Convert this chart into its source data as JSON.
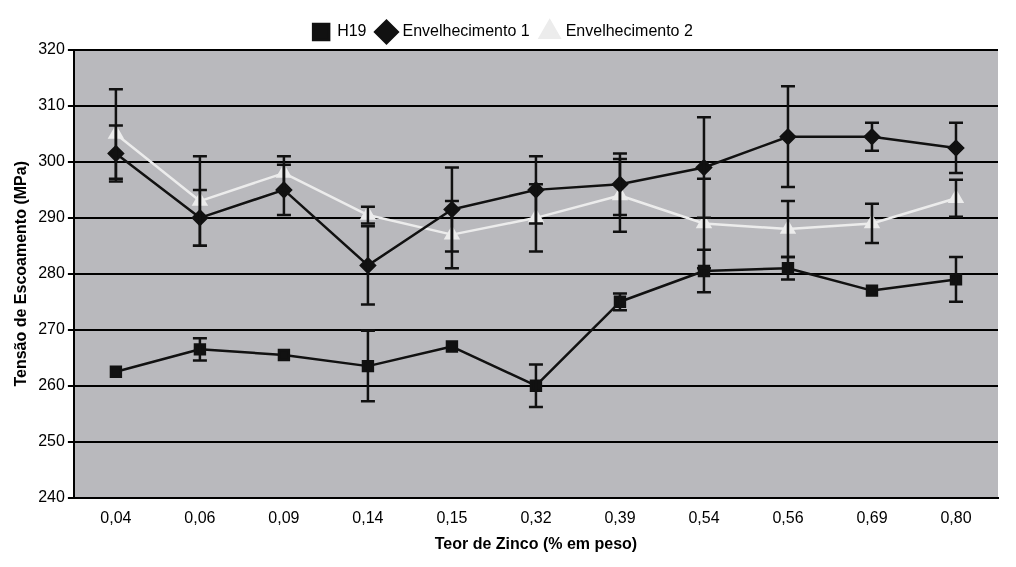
{
  "chart_data": {
    "type": "line",
    "xlabel": "Teor de Zinco (% em peso)",
    "ylabel": "Tensão de Escoamento (MPa)",
    "categories": [
      "0,04",
      "0,06",
      "0,09",
      "0,14",
      "0,15",
      "0,32",
      "0,39",
      "0,54",
      "0,56",
      "0,69",
      "0,80"
    ],
    "ylim": [
      240,
      320
    ],
    "yticks": [
      240,
      250,
      260,
      270,
      280,
      290,
      300,
      310,
      320
    ],
    "grid": "y",
    "legend": "top",
    "line_style": "solid",
    "series": [
      {
        "name": "H19",
        "color": "#111111",
        "marker": "square",
        "values": [
          262.5,
          266.5,
          265.5,
          263.5,
          267,
          260,
          275,
          280.5,
          281,
          277,
          279
        ],
        "errors": [
          null,
          2,
          null,
          6.3,
          null,
          3.8,
          1.5,
          3.8,
          2,
          null,
          4
        ]
      },
      {
        "name": "Envelhecimento 1",
        "color": "#111111",
        "marker": "diamond",
        "values": [
          301.5,
          290,
          295,
          281.5,
          291.5,
          295,
          296,
          299,
          304.5,
          304.5,
          302.5
        ],
        "errors": [
          5,
          5,
          4.5,
          7,
          7.5,
          6,
          5.5,
          9,
          9,
          2.5,
          4.5
        ]
      },
      {
        "name": "Envelhecimento 2",
        "color": "#ececec",
        "marker": "triangle",
        "values": [
          305,
          293,
          298,
          290.5,
          287,
          290,
          294,
          289,
          288,
          289,
          293.5
        ],
        "errors": [
          8,
          8,
          3,
          1.5,
          6,
          6,
          6.5,
          8,
          5,
          3.5,
          3.3
        ]
      }
    ]
  }
}
